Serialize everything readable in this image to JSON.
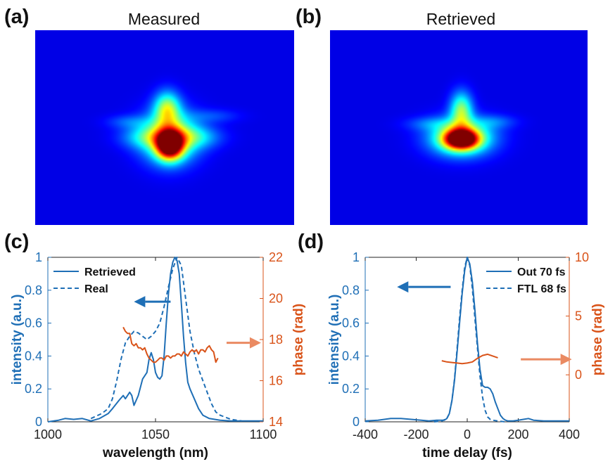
{
  "colors": {
    "blue": "#1f6fb6",
    "orange": "#d95319",
    "arrow_blue": "#1f6fb6",
    "arrow_orange": "#ea8a62",
    "map_background": "#00008f"
  },
  "panels": {
    "a": {
      "label": "(a)",
      "title": "Measured"
    },
    "b": {
      "label": "(b)",
      "title": "Retrieved"
    },
    "c": {
      "label": "(c)"
    },
    "d": {
      "label": "(d)"
    }
  },
  "chart_data": [
    {
      "type": "heatmap",
      "label": "(a)",
      "title": "Measured",
      "colormap": "jet",
      "axes_visible": false,
      "blobs": [
        {
          "u": 0.52,
          "v": 0.59,
          "su": 0.035,
          "sv": 0.05,
          "a": 1.0
        },
        {
          "u": 0.52,
          "v": 0.55,
          "su": 0.075,
          "sv": 0.09,
          "a": 0.55
        },
        {
          "u": 0.51,
          "v": 0.4,
          "su": 0.035,
          "sv": 0.06,
          "a": 0.45
        },
        {
          "u": 0.43,
          "v": 0.55,
          "su": 0.07,
          "sv": 0.04,
          "a": 0.22
        },
        {
          "u": 0.62,
          "v": 0.55,
          "su": 0.07,
          "sv": 0.04,
          "a": 0.22
        },
        {
          "u": 0.36,
          "v": 0.47,
          "su": 0.06,
          "sv": 0.025,
          "a": 0.12
        },
        {
          "u": 0.69,
          "v": 0.44,
          "su": 0.07,
          "sv": 0.025,
          "a": 0.1
        }
      ]
    },
    {
      "type": "heatmap",
      "label": "(b)",
      "title": "Retrieved",
      "colormap": "jet",
      "axes_visible": false,
      "blobs": [
        {
          "u": 0.51,
          "v": 0.56,
          "su": 0.045,
          "sv": 0.035,
          "a": 1.0
        },
        {
          "u": 0.51,
          "v": 0.55,
          "su": 0.085,
          "sv": 0.065,
          "a": 0.55
        },
        {
          "u": 0.51,
          "v": 0.41,
          "su": 0.03,
          "sv": 0.065,
          "a": 0.45
        },
        {
          "u": 0.39,
          "v": 0.48,
          "su": 0.07,
          "sv": 0.025,
          "a": 0.12
        },
        {
          "u": 0.64,
          "v": 0.47,
          "su": 0.06,
          "sv": 0.025,
          "a": 0.12
        }
      ]
    },
    {
      "type": "line",
      "label": "(c)",
      "xlabel": "wavelength (nm)",
      "ylabel": "intensity (a.u.)",
      "y2label": "phase (rad)",
      "xlim": [
        1000,
        1100
      ],
      "ylim": [
        0,
        1
      ],
      "y2lim": [
        14,
        22
      ],
      "xticks": [
        1000,
        1050,
        1100
      ],
      "yticks": [
        0,
        0.2,
        0.4,
        0.6,
        0.8,
        1
      ],
      "ytick_labels": [
        "0",
        "0.2",
        "0.4",
        "0.6",
        "0.8",
        "1"
      ],
      "y2ticks": [
        14,
        16,
        18,
        20,
        22
      ],
      "legend": {
        "position": "top-left",
        "entries": [
          "Retrieved",
          "Real"
        ]
      },
      "series": [
        {
          "name": "Retrieved",
          "axis": "left",
          "style": "solid",
          "x": [
            1000,
            1005,
            1008,
            1012,
            1016,
            1020,
            1024,
            1028,
            1030,
            1033,
            1035,
            1036,
            1038,
            1039,
            1040,
            1042,
            1044,
            1046,
            1047,
            1048,
            1049,
            1050,
            1051,
            1052,
            1053,
            1054,
            1055,
            1056,
            1057,
            1058,
            1059,
            1060,
            1061,
            1062,
            1063,
            1064,
            1065,
            1066,
            1068,
            1070,
            1072,
            1075,
            1080,
            1085,
            1090,
            1095,
            1100
          ],
          "y": [
            0,
            0.01,
            0.02,
            0.015,
            0.02,
            0.005,
            0.02,
            0.05,
            0.08,
            0.13,
            0.16,
            0.14,
            0.18,
            0.16,
            0.1,
            0.16,
            0.26,
            0.3,
            0.38,
            0.42,
            0.38,
            0.3,
            0.27,
            0.26,
            0.28,
            0.4,
            0.6,
            0.78,
            0.9,
            0.97,
            1.0,
            0.98,
            0.9,
            0.72,
            0.52,
            0.36,
            0.24,
            0.2,
            0.14,
            0.08,
            0.04,
            0.02,
            0.01,
            0.005,
            0.005,
            0.005,
            0.005
          ]
        },
        {
          "name": "Real",
          "axis": "left",
          "style": "dashed",
          "x": [
            1020,
            1025,
            1028,
            1030,
            1032,
            1034,
            1036,
            1038,
            1040,
            1042,
            1044,
            1046,
            1048,
            1050,
            1052,
            1054,
            1056,
            1058,
            1060,
            1062,
            1064,
            1066,
            1068,
            1070,
            1072,
            1074,
            1076,
            1078,
            1080,
            1085,
            1090
          ],
          "y": [
            0.02,
            0.05,
            0.08,
            0.14,
            0.25,
            0.38,
            0.48,
            0.52,
            0.55,
            0.54,
            0.52,
            0.5,
            0.52,
            0.55,
            0.6,
            0.7,
            0.82,
            0.93,
            1.0,
            0.95,
            0.75,
            0.55,
            0.42,
            0.32,
            0.25,
            0.18,
            0.11,
            0.06,
            0.04,
            0.015,
            0.005
          ]
        },
        {
          "name": "phase",
          "axis": "right",
          "style": "solid",
          "x": [
            1035,
            1036,
            1037,
            1038,
            1039,
            1040,
            1041,
            1042,
            1043,
            1044,
            1045,
            1046,
            1047,
            1048,
            1049,
            1050,
            1051,
            1052,
            1053,
            1054,
            1055,
            1056,
            1057,
            1058,
            1059,
            1060,
            1061,
            1062,
            1063,
            1064,
            1065,
            1066,
            1067,
            1068,
            1069,
            1070,
            1071,
            1072,
            1073,
            1074,
            1075,
            1076,
            1077,
            1078,
            1079
          ],
          "y": [
            18.6,
            18.4,
            18.3,
            18.3,
            17.8,
            17.7,
            17.8,
            17.6,
            17.6,
            17.5,
            17.6,
            17.3,
            17.1,
            17.0,
            16.9,
            16.9,
            17.0,
            17.1,
            17.1,
            17.0,
            17.2,
            17.2,
            17.1,
            17.2,
            17.2,
            17.3,
            17.3,
            17.2,
            17.4,
            17.3,
            17.2,
            17.4,
            17.5,
            17.4,
            17.5,
            17.3,
            17.5,
            17.5,
            17.4,
            17.6,
            17.7,
            17.5,
            17.4,
            16.9,
            17.1
          ]
        }
      ],
      "annotations": [
        {
          "type": "arrow",
          "direction": "left",
          "color": "blue",
          "x_from": 1057,
          "x_to": 1040,
          "y": 0.73,
          "axis": "left"
        },
        {
          "type": "arrow",
          "direction": "right",
          "color": "orange",
          "x_from": 1083,
          "x_to": 1099,
          "y": 0.48,
          "axis": "left"
        }
      ]
    },
    {
      "type": "line",
      "label": "(d)",
      "xlabel": "time delay (fs)",
      "ylabel": "intensity (a.u.)",
      "y2label": "phase (rad)",
      "xlim": [
        -400,
        400
      ],
      "ylim": [
        0,
        1
      ],
      "y2lim": [
        -4,
        10
      ],
      "xticks": [
        -400,
        -200,
        0,
        200,
        400
      ],
      "yticks": [
        0,
        0.2,
        0.4,
        0.6,
        0.8,
        1
      ],
      "ytick_labels": [
        "0",
        "0.2",
        "0.4",
        "0.6",
        "0.8",
        "1"
      ],
      "y2ticks": [
        0,
        5,
        10
      ],
      "legend": {
        "position": "top-right",
        "entries": [
          "Out 70 fs",
          "FTL 68 fs"
        ]
      },
      "series": [
        {
          "name": "Out 70 fs",
          "axis": "left",
          "style": "solid",
          "x": [
            -400,
            -350,
            -300,
            -260,
            -220,
            -180,
            -150,
            -120,
            -100,
            -90,
            -80,
            -70,
            -60,
            -50,
            -40,
            -30,
            -20,
            -10,
            0,
            10,
            20,
            30,
            40,
            50,
            60,
            70,
            80,
            90,
            100,
            110,
            120,
            130,
            140,
            150,
            160,
            180,
            200,
            220,
            240,
            260,
            300,
            350,
            400
          ],
          "y": [
            0.005,
            0.01,
            0.02,
            0.02,
            0.015,
            0.01,
            0.005,
            0.01,
            0.01,
            0.01,
            0.02,
            0.05,
            0.13,
            0.25,
            0.42,
            0.6,
            0.78,
            0.92,
            1.0,
            0.96,
            0.85,
            0.68,
            0.48,
            0.32,
            0.22,
            0.21,
            0.21,
            0.2,
            0.17,
            0.12,
            0.08,
            0.04,
            0.02,
            0.01,
            0.005,
            0.005,
            0.01,
            0.015,
            0.02,
            0.01,
            0.005,
            0.005,
            0.005
          ]
        },
        {
          "name": "FTL 68 fs",
          "axis": "left",
          "style": "dashed",
          "x": [
            -130,
            -100,
            -80,
            -70,
            -60,
            -50,
            -40,
            -30,
            -20,
            -10,
            0,
            10,
            20,
            30,
            40,
            50,
            60,
            70,
            80,
            90,
            100,
            120,
            150
          ],
          "y": [
            0.0,
            0.005,
            0.02,
            0.05,
            0.13,
            0.26,
            0.44,
            0.63,
            0.8,
            0.94,
            1.0,
            0.95,
            0.81,
            0.63,
            0.45,
            0.28,
            0.15,
            0.07,
            0.03,
            0.015,
            0.01,
            0.005,
            0.0
          ]
        },
        {
          "name": "phase",
          "axis": "right",
          "style": "solid",
          "x": [
            -100,
            -80,
            -60,
            -40,
            -20,
            0,
            20,
            40,
            60,
            80,
            100,
            120
          ],
          "y": [
            1.2,
            1.1,
            1.05,
            1.0,
            0.95,
            1.0,
            1.1,
            1.4,
            1.65,
            1.75,
            1.6,
            1.45
          ]
        }
      ],
      "annotations": [
        {
          "type": "arrow",
          "direction": "left",
          "color": "blue",
          "x_from": -65,
          "x_to": -275,
          "y": 0.82,
          "axis": "left"
        },
        {
          "type": "arrow",
          "direction": "right",
          "color": "orange",
          "x_from": 210,
          "x_to": 410,
          "y": 0.38,
          "axis": "left"
        }
      ]
    }
  ]
}
